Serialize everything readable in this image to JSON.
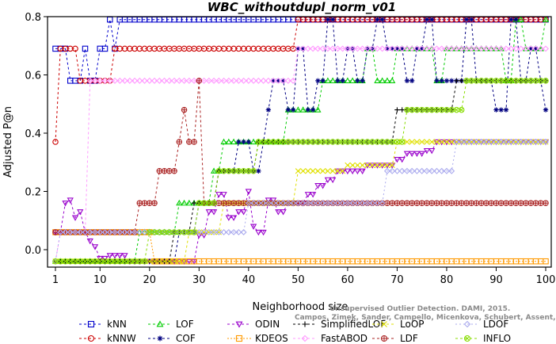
{
  "chart_data": {
    "type": "line",
    "title": "WBC_withoutdupl_norm_v01",
    "xlabel": "Neighborhood size",
    "ylabel": "Adjusted P@n",
    "xlim": [
      0,
      100
    ],
    "ylim": [
      -0.05,
      0.8
    ],
    "xticks": [
      1,
      10,
      20,
      30,
      40,
      50,
      60,
      70,
      80,
      90,
      100
    ],
    "yticks": [
      0.0,
      0.2,
      0.4,
      0.6,
      0.8
    ],
    "ytick_labels": [
      "0.0",
      "0.2",
      "0.4",
      "0.6",
      "0.8"
    ],
    "grid": false,
    "legend_position": "bottom",
    "watermark": [
      "Unsupervised Outlier Detection. DAMI, 2015.",
      "Campos, Zimek, Sander, Campello, Micenkova, Schubert, Assent, Houle"
    ],
    "series": [
      {
        "name": "kNN",
        "color": "#0000cc",
        "marker": "square",
        "dash": "3,3",
        "points": [
          [
            1,
            0.69
          ],
          [
            2,
            0.69
          ],
          [
            3,
            0.69
          ],
          [
            4,
            0.58
          ],
          [
            5,
            0.58
          ],
          [
            6,
            0.58
          ],
          [
            7,
            0.69
          ],
          [
            8,
            0.58
          ],
          [
            9,
            0.58
          ],
          [
            10,
            0.69
          ],
          [
            11,
            0.69
          ],
          [
            12,
            0.79
          ],
          [
            13,
            0.69
          ],
          [
            14,
            0.79
          ],
          [
            20,
            0.79
          ],
          [
            40,
            0.79
          ],
          [
            60,
            0.79
          ],
          [
            80,
            0.79
          ],
          [
            100,
            0.79
          ]
        ]
      },
      {
        "name": "kNNW",
        "color": "#cc0000",
        "marker": "circle",
        "dash": "3,3",
        "points": [
          [
            1,
            0.37
          ],
          [
            2,
            0.69
          ],
          [
            3,
            0.69
          ],
          [
            4,
            0.69
          ],
          [
            5,
            0.69
          ],
          [
            6,
            0.58
          ],
          [
            7,
            0.58
          ],
          [
            8,
            0.58
          ],
          [
            9,
            0.58
          ],
          [
            10,
            0.58
          ],
          [
            11,
            0.58
          ],
          [
            12,
            0.58
          ],
          [
            13,
            0.69
          ],
          [
            20,
            0.69
          ],
          [
            30,
            0.69
          ],
          [
            40,
            0.69
          ],
          [
            49,
            0.69
          ],
          [
            50,
            0.79
          ],
          [
            53,
            0.79
          ],
          [
            60,
            0.79
          ],
          [
            100,
            0.79
          ]
        ]
      },
      {
        "name": "LOF",
        "color": "#00cc00",
        "marker": "triangle",
        "dash": "3,3",
        "points": [
          [
            1,
            -0.04
          ],
          [
            10,
            -0.04
          ],
          [
            17,
            -0.04
          ],
          [
            18,
            0.06
          ],
          [
            25,
            0.06
          ],
          [
            26,
            0.16
          ],
          [
            32,
            0.16
          ],
          [
            33,
            0.27
          ],
          [
            35,
            0.37
          ],
          [
            44,
            0.37
          ],
          [
            46,
            0.37
          ],
          [
            48,
            0.48
          ],
          [
            52,
            0.48
          ],
          [
            55,
            0.58
          ],
          [
            62,
            0.58
          ],
          [
            64,
            0.69
          ],
          [
            66,
            0.58
          ],
          [
            68,
            0.58
          ],
          [
            70,
            0.69
          ],
          [
            76,
            0.69
          ],
          [
            78,
            0.58
          ],
          [
            80,
            0.69
          ],
          [
            90,
            0.69
          ],
          [
            92,
            0.58
          ],
          [
            94,
            0.79
          ],
          [
            96,
            0.69
          ],
          [
            100,
            0.79
          ]
        ]
      },
      {
        "name": "COF",
        "color": "#000080",
        "marker": "star",
        "dash": "3,3",
        "points": [
          [
            1,
            -0.04
          ],
          [
            20,
            -0.04
          ],
          [
            26,
            0.06
          ],
          [
            30,
            0.16
          ],
          [
            34,
            0.27
          ],
          [
            37,
            0.27
          ],
          [
            38,
            0.37
          ],
          [
            41,
            0.27
          ],
          [
            43,
            0.37
          ],
          [
            44,
            0.48
          ],
          [
            45,
            0.58
          ],
          [
            47,
            0.58
          ],
          [
            48,
            0.48
          ],
          [
            50,
            0.69
          ],
          [
            52,
            0.48
          ],
          [
            54,
            0.58
          ],
          [
            56,
            0.79
          ],
          [
            58,
            0.58
          ],
          [
            60,
            0.69
          ],
          [
            62,
            0.58
          ],
          [
            64,
            0.69
          ],
          [
            66,
            0.79
          ],
          [
            68,
            0.69
          ],
          [
            72,
            0.58
          ],
          [
            74,
            0.69
          ],
          [
            76,
            0.79
          ],
          [
            78,
            0.58
          ],
          [
            82,
            0.58
          ],
          [
            84,
            0.79
          ],
          [
            86,
            0.58
          ],
          [
            88,
            0.58
          ],
          [
            90,
            0.48
          ],
          [
            93,
            0.79
          ],
          [
            95,
            0.58
          ],
          [
            97,
            0.69
          ],
          [
            99,
            0.58
          ],
          [
            100,
            0.48
          ]
        ]
      },
      {
        "name": "ODIN",
        "color": "#9900cc",
        "marker": "triangle-down",
        "dash": "3,3",
        "points": [
          [
            1,
            0.06
          ],
          [
            2,
            0.06
          ],
          [
            3,
            0.16
          ],
          [
            4,
            0.17
          ],
          [
            5,
            0.11
          ],
          [
            6,
            0.13
          ],
          [
            7,
            0.06
          ],
          [
            8,
            0.03
          ],
          [
            9,
            0.01
          ],
          [
            10,
            -0.03
          ],
          [
            12,
            -0.02
          ],
          [
            14,
            -0.02
          ],
          [
            16,
            -0.04
          ],
          [
            28,
            -0.04
          ],
          [
            30,
            0.05
          ],
          [
            32,
            0.13
          ],
          [
            34,
            0.19
          ],
          [
            36,
            0.11
          ],
          [
            38,
            0.13
          ],
          [
            40,
            0.2
          ],
          [
            41,
            0.08
          ],
          [
            42,
            0.06
          ],
          [
            44,
            0.17
          ],
          [
            46,
            0.13
          ],
          [
            48,
            0.16
          ],
          [
            50,
            0.16
          ],
          [
            52,
            0.19
          ],
          [
            54,
            0.22
          ],
          [
            56,
            0.24
          ],
          [
            58,
            0.27
          ],
          [
            62,
            0.27
          ],
          [
            64,
            0.29
          ],
          [
            70,
            0.31
          ],
          [
            72,
            0.33
          ],
          [
            76,
            0.34
          ],
          [
            78,
            0.37
          ],
          [
            100,
            0.37
          ]
        ]
      },
      {
        "name": "KDEOS",
        "color": "#ff9900",
        "marker": "square",
        "dash": "2,2",
        "points": [
          [
            1,
            0.06
          ],
          [
            2,
            0.06
          ],
          [
            6,
            0.06
          ],
          [
            10,
            0.06
          ],
          [
            18,
            0.06
          ],
          [
            20,
            0.06
          ],
          [
            21,
            -0.04
          ],
          [
            40,
            -0.04
          ],
          [
            60,
            -0.04
          ],
          [
            80,
            -0.04
          ],
          [
            100,
            -0.04
          ]
        ]
      },
      {
        "name": "SimplifiedLOF",
        "color": "#000000",
        "marker": "plus",
        "dash": "3,3",
        "points": [
          [
            1,
            -0.04
          ],
          [
            20,
            -0.04
          ],
          [
            24,
            -0.04
          ],
          [
            25,
            0.06
          ],
          [
            28,
            0.06
          ],
          [
            29,
            0.16
          ],
          [
            32,
            0.16
          ],
          [
            34,
            0.27
          ],
          [
            40,
            0.27
          ],
          [
            42,
            0.37
          ],
          [
            60,
            0.37
          ],
          [
            69,
            0.37
          ],
          [
            70,
            0.48
          ],
          [
            80,
            0.48
          ],
          [
            82,
            0.58
          ],
          [
            100,
            0.58
          ]
        ]
      },
      {
        "name": "FastABOD",
        "color": "#ff99ff",
        "marker": "diamond",
        "dash": "3,3",
        "points": [
          [
            1,
            -0.04
          ],
          [
            2,
            0.06
          ],
          [
            5,
            0.06
          ],
          [
            8,
            0.58
          ],
          [
            10,
            0.58
          ],
          [
            15,
            0.58
          ],
          [
            18,
            0.58
          ],
          [
            20,
            0.58
          ],
          [
            22,
            0.58
          ],
          [
            45,
            0.58
          ],
          [
            50,
            0.69
          ],
          [
            60,
            0.69
          ],
          [
            70,
            0.69
          ],
          [
            80,
            0.69
          ],
          [
            100,
            0.69
          ]
        ]
      },
      {
        "name": "LoOP",
        "color": "#e0e000",
        "marker": "x",
        "dash": "3,3",
        "points": [
          [
            1,
            -0.04
          ],
          [
            25,
            -0.04
          ],
          [
            28,
            0.06
          ],
          [
            34,
            0.06
          ],
          [
            35,
            0.16
          ],
          [
            48,
            0.16
          ],
          [
            50,
            0.27
          ],
          [
            56,
            0.27
          ],
          [
            58,
            0.27
          ],
          [
            60,
            0.29
          ],
          [
            68,
            0.29
          ],
          [
            70,
            0.37
          ],
          [
            80,
            0.37
          ],
          [
            100,
            0.37
          ]
        ]
      },
      {
        "name": "LDF",
        "color": "#aa2222",
        "marker": "circle-plus",
        "dash": "3,3",
        "points": [
          [
            1,
            0.06
          ],
          [
            5,
            0.06
          ],
          [
            10,
            0.06
          ],
          [
            17,
            0.06
          ],
          [
            18,
            0.16
          ],
          [
            20,
            0.16
          ],
          [
            22,
            0.27
          ],
          [
            24,
            0.27
          ],
          [
            26,
            0.37
          ],
          [
            27,
            0.48
          ],
          [
            28,
            0.37
          ],
          [
            30,
            0.58
          ],
          [
            31,
            0.16
          ],
          [
            40,
            0.16
          ],
          [
            50,
            0.16
          ],
          [
            60,
            0.16
          ],
          [
            70,
            0.16
          ],
          [
            100,
            0.16
          ]
        ]
      },
      {
        "name": "LDOF",
        "color": "#aaaaee",
        "marker": "diamond-open",
        "dash": "2,3",
        "points": [
          [
            1,
            -0.04
          ],
          [
            2,
            0.06
          ],
          [
            10,
            0.06
          ],
          [
            18,
            0.06
          ],
          [
            20,
            0.06
          ],
          [
            30,
            0.06
          ],
          [
            40,
            0.16
          ],
          [
            56,
            0.16
          ],
          [
            64,
            0.16
          ],
          [
            68,
            0.27
          ],
          [
            80,
            0.27
          ],
          [
            82,
            0.37
          ],
          [
            100,
            0.37
          ]
        ]
      },
      {
        "name": "INFLO",
        "color": "#88dd00",
        "marker": "circle-x",
        "dash": "3,3",
        "points": [
          [
            1,
            -0.04
          ],
          [
            18,
            -0.04
          ],
          [
            20,
            0.06
          ],
          [
            28,
            0.06
          ],
          [
            30,
            0.16
          ],
          [
            34,
            0.27
          ],
          [
            40,
            0.27
          ],
          [
            42,
            0.37
          ],
          [
            60,
            0.37
          ],
          [
            70,
            0.37
          ],
          [
            72,
            0.48
          ],
          [
            82,
            0.48
          ],
          [
            84,
            0.58
          ],
          [
            100,
            0.58
          ]
        ]
      }
    ]
  }
}
